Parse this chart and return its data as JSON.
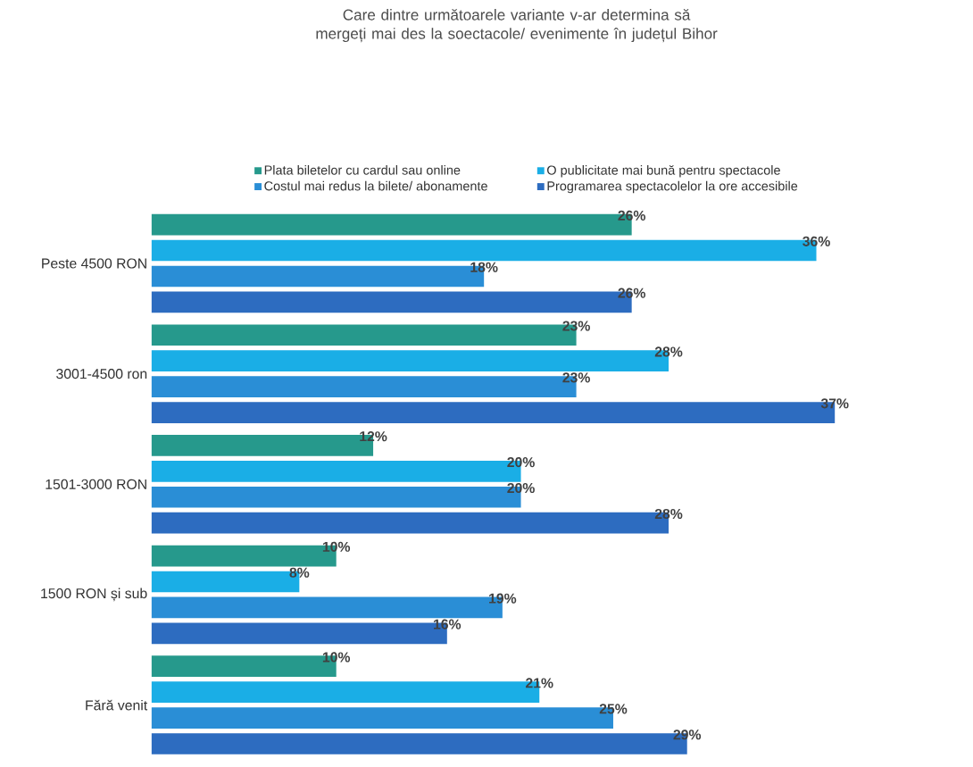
{
  "chart_data": {
    "type": "bar",
    "orientation": "horizontal",
    "title": "Care dintre următoarele variante v-ar determina să mergeți mai des la soectacole/ evenimente în județul Bihor",
    "categories": [
      "Peste 4500 RON",
      "3001-4500 ron",
      "1501-3000 RON",
      "1500 RON și sub",
      "Fără venit"
    ],
    "series": [
      {
        "name": "Plata biletelor cu cardul sau online",
        "color": "#26998c",
        "values": [
          26,
          23,
          12,
          10,
          10
        ],
        "value_labels": [
          "26%",
          "23%",
          "12%",
          "10%",
          "10%"
        ]
      },
      {
        "name": "O publicitate mai bună pentru spectacole",
        "color": "#1aaee6",
        "values": [
          36,
          28,
          20,
          8,
          21
        ],
        "value_labels": [
          "36%",
          "28%",
          "20%",
          "8%",
          "21%"
        ]
      },
      {
        "name": "Costul mai redus la bilete/ abonamente",
        "color": "#2a8ed6",
        "values": [
          18,
          23,
          20,
          19,
          25
        ],
        "value_labels": [
          "18%",
          "23%",
          "20%",
          "19%",
          "25%"
        ]
      },
      {
        "name": "Programarea spectacolelor la ore accesibile",
        "color": "#2d6cc0",
        "values": [
          26,
          37,
          28,
          16,
          29
        ],
        "value_labels": [
          "26%",
          "37%",
          "28%",
          "16%",
          "29%"
        ]
      }
    ],
    "legend": "top"
  }
}
